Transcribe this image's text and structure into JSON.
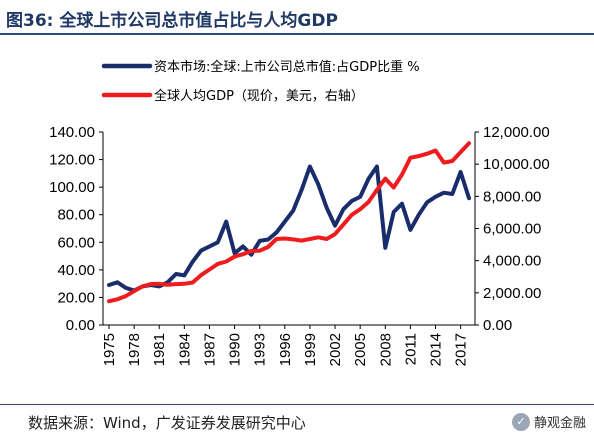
{
  "title": "图36:  全球上市公司总市值占比与人均GDP",
  "source": "数据来源：Wind，广发证券发展研究中心",
  "brand": "静观金融",
  "colors": {
    "series1": "#1a2d6b",
    "series2": "#ee1c1c",
    "title": "#1f3864"
  },
  "chart_data": {
    "type": "line",
    "x": [
      1975,
      1976,
      1977,
      1978,
      1979,
      1980,
      1981,
      1982,
      1983,
      1984,
      1985,
      1986,
      1987,
      1988,
      1989,
      1990,
      1991,
      1992,
      1993,
      1994,
      1995,
      1996,
      1997,
      1998,
      1999,
      2000,
      2001,
      2002,
      2003,
      2004,
      2005,
      2006,
      2007,
      2008,
      2009,
      2010,
      2011,
      2012,
      2013,
      2014,
      2015,
      2016,
      2017,
      2018
    ],
    "x_ticks": [
      "1975",
      "1978",
      "1981",
      "1984",
      "1987",
      "1990",
      "1993",
      "1996",
      "1999",
      "2002",
      "2005",
      "2008",
      "2011",
      "2014",
      "2017"
    ],
    "y_left": {
      "range": [
        0,
        140
      ],
      "ticks": [
        "0.00",
        "20.00",
        "40.00",
        "60.00",
        "80.00",
        "100.00",
        "120.00",
        "140.00"
      ]
    },
    "y_right": {
      "range": [
        0,
        12000
      ],
      "ticks": [
        "0.00",
        "2,000.00",
        "4,000.00",
        "6,000.00",
        "8,000.00",
        "10,000.00",
        "12,000.00"
      ]
    },
    "legend_position": "top",
    "series": [
      {
        "name": "资本市场:全球:上市公司总市值:占GDP比重 %",
        "axis": "left",
        "color": "#1a2d6b",
        "values": [
          29,
          31,
          27,
          25,
          28,
          29,
          28,
          31,
          37,
          36,
          46,
          54,
          57,
          60,
          75,
          52,
          57,
          51,
          61,
          62,
          67,
          75,
          83,
          98,
          115,
          102,
          85,
          72,
          84,
          90,
          93,
          106,
          115,
          56,
          82,
          88,
          69,
          80,
          89,
          93,
          96,
          95,
          111,
          92
        ]
      },
      {
        "name": "全球人均GDP（现价，美元，右轴）",
        "axis": "right",
        "color": "#ee1c1c",
        "values": [
          1480,
          1600,
          1800,
          2100,
          2400,
          2550,
          2560,
          2500,
          2540,
          2560,
          2640,
          3100,
          3450,
          3800,
          3950,
          4250,
          4400,
          4600,
          4620,
          4850,
          5350,
          5380,
          5320,
          5250,
          5350,
          5450,
          5350,
          5650,
          6250,
          6850,
          7200,
          7650,
          8400,
          9100,
          8550,
          9350,
          10400,
          10500,
          10650,
          10850,
          10100,
          10200,
          10750,
          11300
        ]
      }
    ]
  }
}
